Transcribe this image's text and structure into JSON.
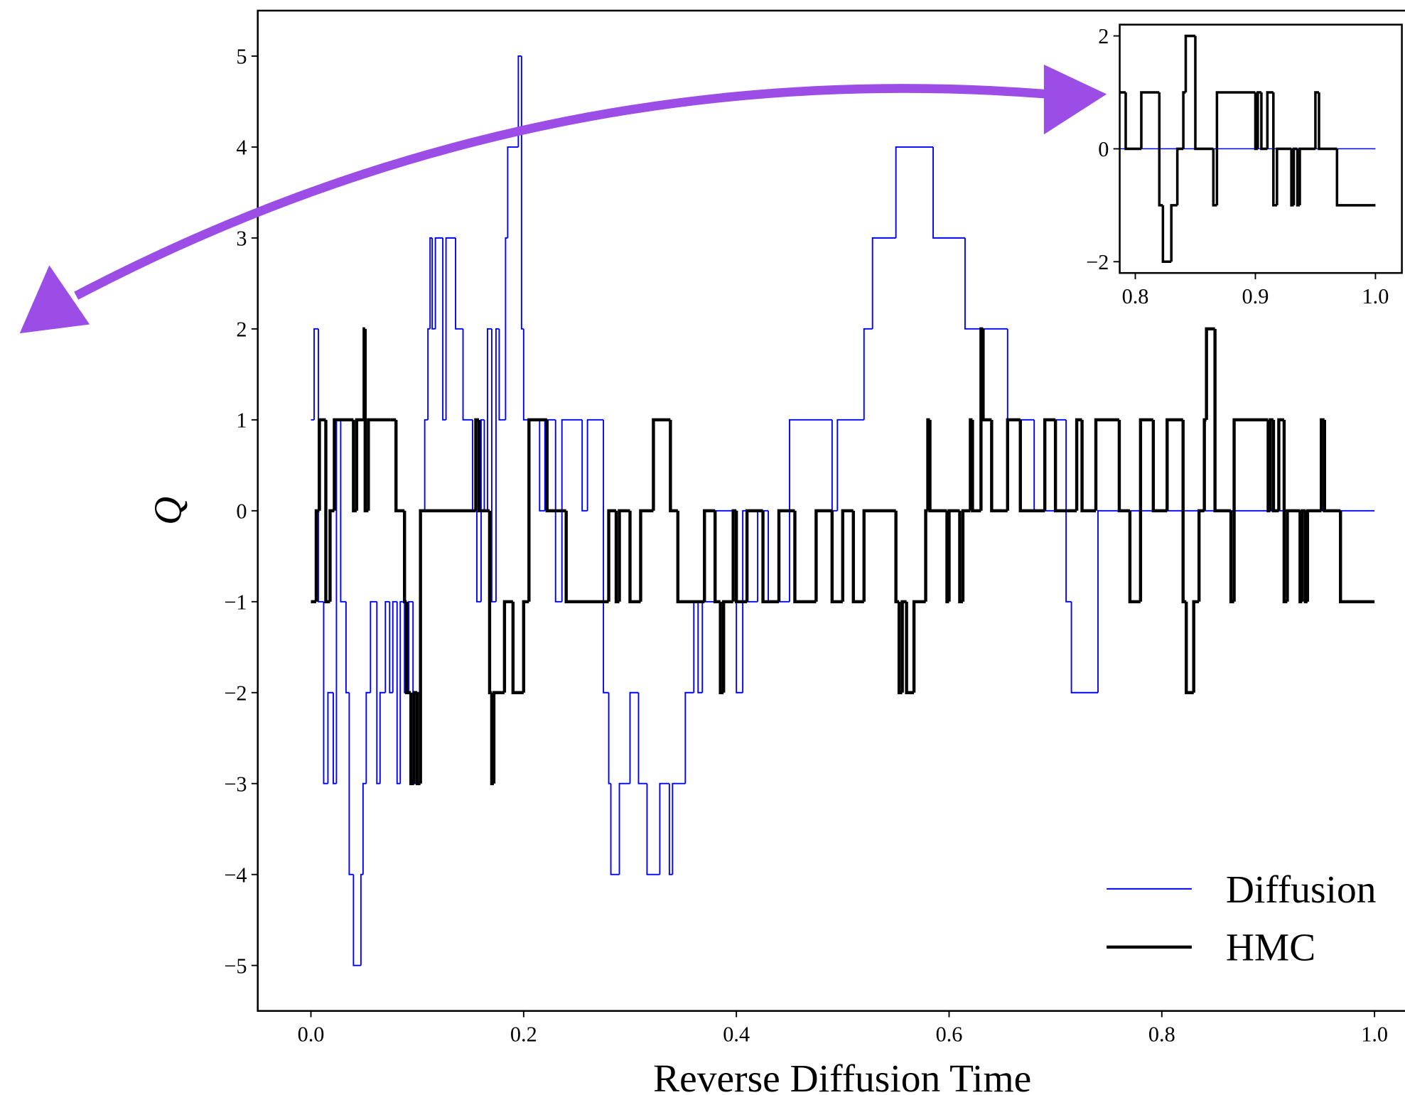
{
  "chart_data": {
    "type": "line",
    "xlabel": "Reverse Diffusion Time",
    "ylabel": "Q",
    "xlim": [
      -0.05,
      1.05
    ],
    "ylim": [
      -5.5,
      5.5
    ],
    "xticks": [
      {
        "value": 0,
        "label": "0.0"
      },
      0.2,
      0.4,
      0.6,
      0.8,
      {
        "value": 1,
        "label": "1.0"
      }
    ],
    "yticks": [
      {
        "value": -5,
        "label": "−5"
      },
      {
        "value": -4,
        "label": "−4"
      },
      {
        "value": -3,
        "label": "−3"
      },
      {
        "value": -2,
        "label": "−2"
      },
      {
        "value": -1,
        "label": "−1"
      },
      0,
      1,
      2,
      3,
      4,
      5
    ],
    "legend": "lower right",
    "series": [
      {
        "name": "Diffusion",
        "color": "#0000ff",
        "width": 1.5,
        "x": [
          0.0,
          0.003,
          0.007,
          0.012,
          0.016,
          0.021,
          0.024,
          0.028,
          0.033,
          0.036,
          0.04,
          0.047,
          0.049,
          0.052,
          0.056,
          0.062,
          0.065,
          0.07,
          0.074,
          0.077,
          0.081,
          0.084,
          0.088,
          0.092,
          0.096,
          0.1,
          0.103,
          0.107,
          0.11,
          0.112,
          0.114,
          0.117,
          0.124,
          0.127,
          0.136,
          0.143,
          0.152,
          0.156,
          0.16,
          0.163,
          0.166,
          0.17,
          0.174,
          0.177,
          0.183,
          0.185,
          0.195,
          0.198,
          0.2,
          0.215,
          0.22,
          0.23,
          0.236,
          0.255,
          0.26,
          0.275,
          0.28,
          0.282,
          0.29,
          0.3,
          0.308,
          0.316,
          0.328,
          0.337,
          0.34,
          0.352,
          0.36,
          0.364,
          0.368,
          0.38,
          0.4,
          0.406,
          0.41,
          0.42,
          0.43,
          0.45,
          0.49,
          0.495,
          0.52,
          0.528,
          0.55,
          0.585,
          0.615,
          0.655,
          0.68,
          0.7,
          0.71,
          0.715,
          0.74,
          1.0
        ],
        "values": [
          1,
          2,
          -1,
          -3,
          -2,
          -3,
          1,
          -1,
          -2,
          -4,
          -5,
          -4,
          -3,
          -2,
          -1,
          -3,
          -2,
          -1,
          -2,
          -1,
          -3,
          -1,
          -2,
          -1,
          -3,
          -2,
          0,
          1,
          2,
          3,
          2,
          3,
          1,
          3,
          2,
          1,
          0,
          -1,
          1,
          0,
          2,
          -1,
          2,
          1,
          3,
          4,
          5,
          2,
          1,
          0,
          1,
          -1,
          1,
          0,
          1,
          -2,
          -3,
          -4,
          -3,
          -2,
          -3,
          -4,
          -3,
          -4,
          -3,
          -2,
          -1,
          -2,
          -1,
          0,
          -2,
          0,
          -1,
          0,
          -1,
          1,
          0,
          1,
          2,
          3,
          4,
          3,
          2,
          1,
          0,
          1,
          -1,
          -2,
          0,
          0
        ]
      },
      {
        "name": "HMC",
        "color": "#000000",
        "width": 3.5,
        "x": [
          0.0,
          0.005,
          0.008,
          0.014,
          0.018,
          0.022,
          0.04,
          0.043,
          0.05,
          0.051,
          0.054,
          0.075,
          0.08,
          0.088,
          0.09,
          0.094,
          0.097,
          0.1,
          0.103,
          0.155,
          0.158,
          0.168,
          0.17,
          0.172,
          0.18,
          0.182,
          0.19,
          0.2,
          0.205,
          0.222,
          0.24,
          0.28,
          0.287,
          0.29,
          0.3,
          0.31,
          0.322,
          0.338,
          0.345,
          0.37,
          0.38,
          0.385,
          0.388,
          0.397,
          0.4,
          0.41,
          0.425,
          0.44,
          0.455,
          0.475,
          0.49,
          0.5,
          0.51,
          0.52,
          0.55,
          0.553,
          0.556,
          0.56,
          0.567,
          0.578,
          0.58,
          0.582,
          0.598,
          0.6,
          0.61,
          0.613,
          0.62,
          0.622,
          0.63,
          0.632,
          0.64,
          0.655,
          0.667,
          0.69,
          0.7,
          0.72,
          0.725,
          0.738,
          0.76,
          0.77,
          0.78,
          0.792,
          0.805,
          0.82,
          0.823,
          0.83,
          0.835,
          0.84,
          0.842,
          0.85,
          0.865,
          0.868,
          0.9,
          0.902,
          0.905,
          0.91,
          0.915,
          0.918,
          0.93,
          0.932,
          0.935,
          0.937,
          0.95,
          0.953,
          0.968,
          1.0
        ],
        "values": [
          -1,
          0,
          1,
          -1,
          0,
          1,
          0,
          1,
          2,
          0,
          1,
          1,
          0,
          -1,
          -2,
          -3,
          -2,
          -3,
          0,
          1,
          0,
          -2,
          -3,
          -2,
          -2,
          -1,
          -2,
          -1,
          1,
          0,
          -1,
          0,
          -1,
          0,
          -1,
          0,
          1,
          0,
          -1,
          0,
          -1,
          -2,
          -1,
          0,
          -1,
          0,
          -1,
          0,
          -1,
          0,
          -1,
          0,
          -1,
          0,
          -1,
          -2,
          -1,
          -2,
          -1,
          0,
          1,
          0,
          -1,
          0,
          -1,
          0,
          1,
          0,
          2,
          1,
          0,
          1,
          0,
          1,
          0,
          1,
          0,
          1,
          0,
          -1,
          1,
          0,
          1,
          -1,
          -2,
          -1,
          0,
          1,
          2,
          0,
          -1,
          1,
          0,
          1,
          0,
          1,
          -1,
          0,
          -1,
          0,
          -1,
          0,
          1,
          0,
          -1,
          -1
        ]
      }
    ],
    "inset": {
      "xlim": [
        0.787,
        1.022
      ],
      "ylim": [
        -2.2,
        2.2
      ],
      "xticks": [
        0.8,
        0.9,
        {
          "value": 1,
          "label": "1.0"
        }
      ],
      "yticks": [
        {
          "value": -2,
          "label": "−2"
        },
        0,
        2
      ]
    }
  }
}
